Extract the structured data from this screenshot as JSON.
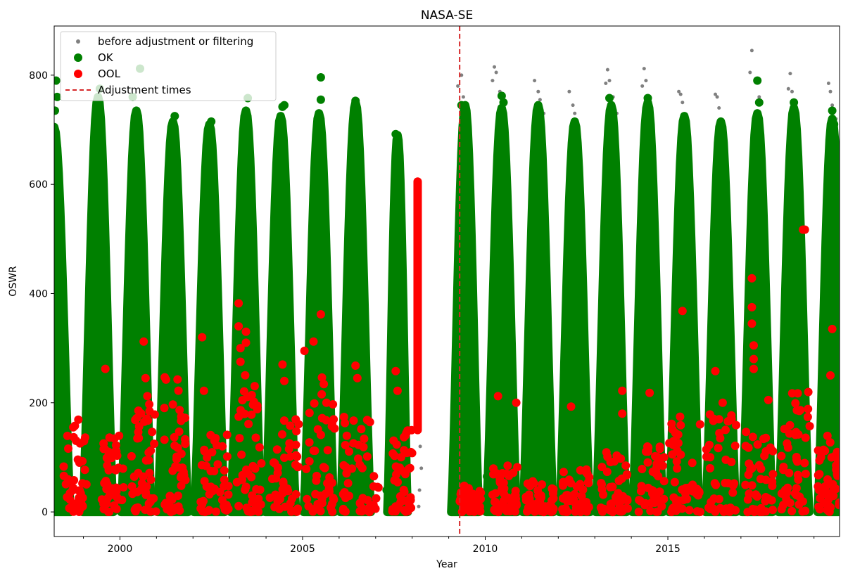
{
  "chart_data": {
    "type": "scatter",
    "title": "NASA-SE",
    "xlabel": "Year",
    "ylabel": "OSWR",
    "xlim": [
      1998.2,
      2019.7
    ],
    "ylim": [
      -45,
      890
    ],
    "x_ticks": [
      {
        "value": 2000,
        "label": "2000"
      },
      {
        "value": 2005,
        "label": "2005"
      },
      {
        "value": 2010,
        "label": "2010"
      },
      {
        "value": 2015,
        "label": "2015"
      }
    ],
    "y_ticks": [
      {
        "value": 0,
        "label": "0"
      },
      {
        "value": 200,
        "label": "200"
      },
      {
        "value": 400,
        "label": "400"
      },
      {
        "value": 600,
        "label": "600"
      },
      {
        "value": 800,
        "label": "800"
      }
    ],
    "grid": false,
    "legend_position": "top-left",
    "legend": [
      {
        "label": "before adjustment or filtering",
        "marker": "small-dot",
        "color": "#808080"
      },
      {
        "label": "OK",
        "marker": "dot",
        "color": "#008000"
      },
      {
        "label": "OOL",
        "marker": "dot",
        "color": "#ff0000"
      },
      {
        "label": "Adjustment times",
        "marker": "dashed-line",
        "color": "#d62728"
      }
    ],
    "adjustment_times": [
      2009.3
    ],
    "series": [
      {
        "name": "before adjustment or filtering",
        "color": "#808080",
        "points": [
          [
            2008.2,
            160
          ],
          [
            2008.22,
            120
          ],
          [
            2008.25,
            80
          ],
          [
            2008.2,
            40
          ],
          [
            2008.18,
            10
          ],
          [
            2009.25,
            780
          ],
          [
            2009.35,
            800
          ],
          [
            2009.4,
            760
          ],
          [
            2009.45,
            640
          ],
          [
            2009.5,
            600
          ],
          [
            2010.2,
            790
          ],
          [
            2010.25,
            815
          ],
          [
            2010.3,
            805
          ],
          [
            2010.4,
            770
          ],
          [
            2011.35,
            790
          ],
          [
            2011.45,
            770
          ],
          [
            2011.5,
            755
          ],
          [
            2011.6,
            730
          ],
          [
            2012.3,
            770
          ],
          [
            2012.4,
            745
          ],
          [
            2012.45,
            730
          ],
          [
            2012.55,
            610
          ],
          [
            2013.3,
            785
          ],
          [
            2013.35,
            810
          ],
          [
            2013.4,
            790
          ],
          [
            2013.5,
            760
          ],
          [
            2013.6,
            730
          ],
          [
            2014.3,
            780
          ],
          [
            2014.35,
            812
          ],
          [
            2014.4,
            790
          ],
          [
            2014.5,
            760
          ],
          [
            2014.55,
            640
          ],
          [
            2015.3,
            770
          ],
          [
            2015.35,
            765
          ],
          [
            2015.4,
            750
          ],
          [
            2015.45,
            720
          ],
          [
            2016.3,
            765
          ],
          [
            2016.35,
            760
          ],
          [
            2016.4,
            740
          ],
          [
            2016.45,
            710
          ],
          [
            2017.25,
            805
          ],
          [
            2017.3,
            845
          ],
          [
            2017.4,
            790
          ],
          [
            2017.5,
            760
          ],
          [
            2018.3,
            775
          ],
          [
            2018.35,
            803
          ],
          [
            2018.4,
            770
          ],
          [
            2018.5,
            740
          ],
          [
            2019.4,
            785
          ],
          [
            2019.45,
            770
          ],
          [
            2019.5,
            745
          ],
          [
            2019.6,
            720
          ]
        ]
      },
      {
        "name": "OK",
        "color": "#008000",
        "seasons": [
          {
            "center": 1998.2,
            "width": 0.45,
            "peak": 705
          },
          {
            "center": 1999.4,
            "width": 0.42,
            "peak": 760
          },
          {
            "center": 2000.45,
            "width": 0.42,
            "peak": 735
          },
          {
            "center": 2001.45,
            "width": 0.42,
            "peak": 715
          },
          {
            "center": 2002.45,
            "width": 0.42,
            "peak": 710
          },
          {
            "center": 2003.45,
            "width": 0.42,
            "peak": 735
          },
          {
            "center": 2004.4,
            "width": 0.42,
            "peak": 725
          },
          {
            "center": 2005.45,
            "width": 0.42,
            "peak": 730
          },
          {
            "center": 2006.45,
            "width": 0.42,
            "peak": 750
          },
          {
            "center": 2007.6,
            "width": 0.28,
            "peak": 690
          },
          {
            "center": 2009.45,
            "width": 0.38,
            "peak": 745
          },
          {
            "center": 2010.45,
            "width": 0.42,
            "peak": 740
          },
          {
            "center": 2011.45,
            "width": 0.42,
            "peak": 745
          },
          {
            "center": 2012.45,
            "width": 0.42,
            "peak": 715
          },
          {
            "center": 2013.45,
            "width": 0.42,
            "peak": 745
          },
          {
            "center": 2014.45,
            "width": 0.42,
            "peak": 750
          },
          {
            "center": 2015.45,
            "width": 0.42,
            "peak": 725
          },
          {
            "center": 2016.45,
            "width": 0.42,
            "peak": 715
          },
          {
            "center": 2017.45,
            "width": 0.42,
            "peak": 730
          },
          {
            "center": 2018.45,
            "width": 0.42,
            "peak": 740
          },
          {
            "center": 2019.5,
            "width": 0.4,
            "peak": 720
          }
        ],
        "points": [
          [
            1998.25,
            790
          ],
          [
            1998.28,
            760
          ],
          [
            1998.22,
            735
          ],
          [
            1999.45,
            775
          ],
          [
            2000.35,
            760
          ],
          [
            2000.55,
            812
          ],
          [
            2001.5,
            725
          ],
          [
            2002.5,
            715
          ],
          [
            2003.5,
            758
          ],
          [
            2004.45,
            742
          ],
          [
            2004.5,
            745
          ],
          [
            2005.5,
            796
          ],
          [
            2005.5,
            755
          ],
          [
            2006.45,
            753
          ],
          [
            2007.55,
            692
          ],
          [
            2009.35,
            745
          ],
          [
            2010.45,
            762
          ],
          [
            2010.5,
            750
          ],
          [
            2011.45,
            735
          ],
          [
            2013.4,
            758
          ],
          [
            2013.45,
            735
          ],
          [
            2014.45,
            758
          ],
          [
            2017.45,
            790
          ],
          [
            2017.5,
            750
          ],
          [
            2018.45,
            750
          ],
          [
            2019.5,
            735
          ],
          [
            2019.55,
            710
          ],
          [
            2010.05,
            65
          ],
          [
            2007.3,
            40
          ]
        ]
      },
      {
        "name": "OOL",
        "color": "#ff0000",
        "clusters": [
          {
            "x0": 1998.45,
            "x1": 1999.1,
            "max": 170
          },
          {
            "x0": 1999.5,
            "x1": 2000.1,
            "max": 140
          },
          {
            "x0": 2000.3,
            "x1": 2001.0,
            "max": 200
          },
          {
            "x0": 2001.2,
            "x1": 2001.8,
            "max": 250
          },
          {
            "x0": 2002.2,
            "x1": 2003.0,
            "max": 150
          },
          {
            "x0": 2003.2,
            "x1": 2003.9,
            "max": 260
          },
          {
            "x0": 2004.1,
            "x1": 2004.9,
            "max": 170
          },
          {
            "x0": 2005.1,
            "x1": 2005.9,
            "max": 260
          },
          {
            "x0": 2006.1,
            "x1": 2007.1,
            "max": 200
          },
          {
            "x0": 2007.45,
            "x1": 2008.0,
            "max": 160
          },
          {
            "x0": 2009.3,
            "x1": 2009.9,
            "max": 50
          },
          {
            "x0": 2010.2,
            "x1": 2010.9,
            "max": 90
          },
          {
            "x0": 2011.1,
            "x1": 2011.9,
            "max": 60
          },
          {
            "x0": 2012.1,
            "x1": 2012.9,
            "max": 80
          },
          {
            "x0": 2013.1,
            "x1": 2013.9,
            "max": 110
          },
          {
            "x0": 2014.2,
            "x1": 2014.9,
            "max": 140
          },
          {
            "x0": 2015.0,
            "x1": 2015.9,
            "max": 200
          },
          {
            "x0": 2016.0,
            "x1": 2016.9,
            "max": 180
          },
          {
            "x0": 2017.1,
            "x1": 2017.9,
            "max": 150
          },
          {
            "x0": 2018.1,
            "x1": 2018.9,
            "max": 240
          },
          {
            "x0": 2019.1,
            "x1": 2019.7,
            "max": 140
          }
        ],
        "column": {
          "x": 2008.15,
          "y0": 150,
          "y1": 605
        },
        "points": [
          [
            1999.6,
            262
          ],
          [
            2000.65,
            312
          ],
          [
            2000.7,
            245
          ],
          [
            2000.75,
            212
          ],
          [
            2002.25,
            320
          ],
          [
            2002.3,
            222
          ],
          [
            2003.25,
            382
          ],
          [
            2003.25,
            340
          ],
          [
            2003.3,
            300
          ],
          [
            2003.3,
            275
          ],
          [
            2003.45,
            330
          ],
          [
            2003.45,
            310
          ],
          [
            2004.45,
            270
          ],
          [
            2004.5,
            240
          ],
          [
            2005.05,
            295
          ],
          [
            2005.3,
            312
          ],
          [
            2005.5,
            362
          ],
          [
            2006.45,
            268
          ],
          [
            2006.5,
            245
          ],
          [
            2007.55,
            258
          ],
          [
            2007.6,
            222
          ],
          [
            2010.35,
            212
          ],
          [
            2010.85,
            200
          ],
          [
            2012.35,
            193
          ],
          [
            2013.75,
            222
          ],
          [
            2013.75,
            180
          ],
          [
            2014.5,
            218
          ],
          [
            2015.4,
            368
          ],
          [
            2016.3,
            258
          ],
          [
            2017.3,
            428
          ],
          [
            2017.3,
            375
          ],
          [
            2017.3,
            345
          ],
          [
            2017.35,
            305
          ],
          [
            2017.35,
            280
          ],
          [
            2017.35,
            262
          ],
          [
            2018.7,
            517
          ],
          [
            2018.75,
            517
          ],
          [
            2019.5,
            335
          ],
          [
            2019.45,
            250
          ],
          [
            2016.5,
            200
          ],
          [
            2017.75,
            205
          ],
          [
            2018.6,
            185
          ]
        ]
      }
    ]
  }
}
